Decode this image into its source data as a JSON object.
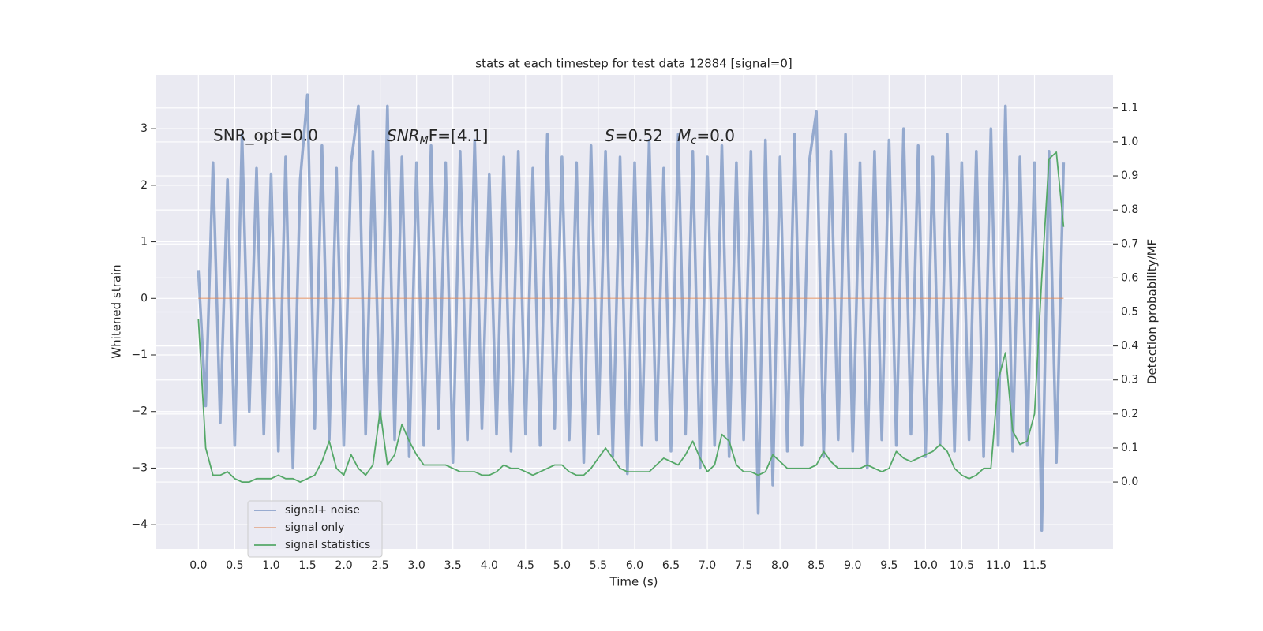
{
  "chart_data": {
    "type": "line",
    "title": "stats at each timestep for test data 12884 [signal=0]",
    "xlabel": "Time (s)",
    "ylabel": "Whitened strain",
    "y2label": "Detection probability/MF",
    "annotations": [
      "SNR_opt=0.0",
      {
        "italic": "SNR",
        "sub": "M",
        "text": "F=[4.1]"
      },
      {
        "italic": "S",
        "text": "=0.52"
      },
      {
        "italic": "M",
        "sub": "c",
        "text": "=0.0"
      }
    ],
    "x": [
      0.0,
      0.1,
      0.2,
      0.3,
      0.4,
      0.5,
      0.6,
      0.7,
      0.8,
      0.9,
      1.0,
      1.1,
      1.2,
      1.3,
      1.4,
      1.5,
      1.6,
      1.7,
      1.8,
      1.9,
      2.0,
      2.1,
      2.2,
      2.3,
      2.4,
      2.5,
      2.6,
      2.7,
      2.8,
      2.9,
      3.0,
      3.1,
      3.2,
      3.3,
      3.4,
      3.5,
      3.6,
      3.7,
      3.8,
      3.9,
      4.0,
      4.1,
      4.2,
      4.3,
      4.4,
      4.5,
      4.6,
      4.7,
      4.8,
      4.9,
      5.0,
      5.1,
      5.2,
      5.3,
      5.4,
      5.5,
      5.6,
      5.7,
      5.8,
      5.9,
      6.0,
      6.1,
      6.2,
      6.3,
      6.4,
      6.5,
      6.6,
      6.7,
      6.8,
      6.9,
      7.0,
      7.1,
      7.2,
      7.3,
      7.4,
      7.5,
      7.6,
      7.7,
      7.8,
      7.9,
      8.0,
      8.1,
      8.2,
      8.3,
      8.4,
      8.5,
      8.6,
      8.7,
      8.8,
      8.9,
      9.0,
      9.1,
      9.2,
      9.3,
      9.4,
      9.5,
      9.6,
      9.7,
      9.8,
      9.9,
      10.0,
      10.1,
      10.2,
      10.3,
      10.4,
      10.5,
      10.6,
      10.7,
      10.8,
      10.9,
      11.0,
      11.1,
      11.2,
      11.3,
      11.4,
      11.5,
      11.6,
      11.7,
      11.8,
      11.9
    ],
    "series": [
      {
        "name": "signal+ noise",
        "color": "#4c72b0",
        "values": [
          0.5,
          -1.9,
          2.4,
          -2.2,
          2.1,
          -2.6,
          2.9,
          -2.0,
          2.3,
          -2.4,
          2.2,
          -2.7,
          2.5,
          -3.0,
          2.1,
          3.6,
          -2.3,
          2.7,
          -2.5,
          2.3,
          -2.6,
          2.4,
          3.4,
          -2.4,
          2.6,
          -2.2,
          3.4,
          -2.5,
          2.5,
          -2.8,
          2.4,
          -2.6,
          2.7,
          -2.3,
          2.4,
          -2.9,
          2.6,
          -2.5,
          2.8,
          -2.3,
          2.2,
          -2.4,
          2.5,
          -2.7,
          2.6,
          -2.4,
          2.3,
          -2.6,
          2.9,
          -2.3,
          2.5,
          -2.5,
          2.4,
          -2.9,
          2.7,
          -2.4,
          2.6,
          -2.8,
          2.5,
          -3.1,
          2.4,
          -2.6,
          2.8,
          -2.5,
          2.3,
          -2.7,
          2.9,
          -2.4,
          2.6,
          -3.0,
          2.5,
          -2.6,
          2.7,
          -2.8,
          2.4,
          -2.5,
          2.6,
          -3.8,
          2.8,
          -3.3,
          2.5,
          -2.7,
          2.9,
          -2.6,
          2.4,
          3.3,
          -2.8,
          2.6,
          -2.5,
          2.9,
          -2.7,
          2.4,
          -3.0,
          2.6,
          -2.5,
          2.8,
          -2.6,
          3.0,
          -2.4,
          2.7,
          -2.8,
          2.5,
          -2.6,
          2.9,
          -2.7,
          2.4,
          -2.5,
          2.6,
          -2.8,
          3.0,
          -2.6,
          3.4,
          -2.7,
          2.5,
          -2.6,
          2.4,
          -4.1,
          2.6,
          -2.9,
          2.4
        ]
      },
      {
        "name": "signal only",
        "color": "#dd8452",
        "values": [
          0,
          0,
          0,
          0,
          0,
          0,
          0,
          0,
          0,
          0,
          0,
          0,
          0,
          0,
          0,
          0,
          0,
          0,
          0,
          0,
          0,
          0,
          0,
          0,
          0,
          0,
          0,
          0,
          0,
          0,
          0,
          0,
          0,
          0,
          0,
          0,
          0,
          0,
          0,
          0,
          0,
          0,
          0,
          0,
          0,
          0,
          0,
          0,
          0,
          0,
          0,
          0,
          0,
          0,
          0,
          0,
          0,
          0,
          0,
          0,
          0,
          0,
          0,
          0,
          0,
          0,
          0,
          0,
          0,
          0,
          0,
          0,
          0,
          0,
          0,
          0,
          0,
          0,
          0,
          0,
          0,
          0,
          0,
          0,
          0,
          0,
          0,
          0,
          0,
          0,
          0,
          0,
          0,
          0,
          0,
          0,
          0,
          0,
          0,
          0,
          0,
          0,
          0,
          0,
          0,
          0,
          0,
          0,
          0,
          0,
          0,
          0,
          0,
          0,
          0,
          0,
          0,
          0,
          0,
          0
        ]
      },
      {
        "name": "signal statistics",
        "color": "#55a868",
        "axis": "y2",
        "values": [
          0.48,
          0.1,
          0.02,
          0.02,
          0.03,
          0.01,
          0.0,
          0.0,
          0.01,
          0.01,
          0.01,
          0.02,
          0.01,
          0.01,
          0.0,
          0.01,
          0.02,
          0.06,
          0.12,
          0.04,
          0.02,
          0.08,
          0.04,
          0.02,
          0.05,
          0.21,
          0.05,
          0.08,
          0.17,
          0.12,
          0.08,
          0.05,
          0.05,
          0.05,
          0.05,
          0.04,
          0.03,
          0.03,
          0.03,
          0.02,
          0.02,
          0.03,
          0.05,
          0.04,
          0.04,
          0.03,
          0.02,
          0.03,
          0.04,
          0.05,
          0.05,
          0.03,
          0.02,
          0.02,
          0.04,
          0.07,
          0.1,
          0.07,
          0.04,
          0.03,
          0.03,
          0.03,
          0.03,
          0.05,
          0.07,
          0.06,
          0.05,
          0.08,
          0.12,
          0.07,
          0.03,
          0.05,
          0.14,
          0.12,
          0.05,
          0.03,
          0.03,
          0.02,
          0.03,
          0.08,
          0.06,
          0.04,
          0.04,
          0.04,
          0.04,
          0.05,
          0.09,
          0.06,
          0.04,
          0.04,
          0.04,
          0.04,
          0.05,
          0.04,
          0.03,
          0.04,
          0.09,
          0.07,
          0.06,
          0.07,
          0.08,
          0.09,
          0.11,
          0.09,
          0.04,
          0.02,
          0.01,
          0.02,
          0.04,
          0.04,
          0.3,
          0.38,
          0.15,
          0.11,
          0.12,
          0.2,
          0.6,
          0.95,
          0.97,
          0.75
        ]
      }
    ],
    "xlim": [
      -0.59,
      12.58
    ],
    "xticks": [
      {
        "value": 0,
        "label": "0.0"
      },
      {
        "value": 0.5,
        "label": "0.5"
      },
      {
        "value": 1,
        "label": "1.0"
      },
      {
        "value": 1.5,
        "label": "1.5"
      },
      {
        "value": 2,
        "label": "2.0"
      },
      {
        "value": 2.5,
        "label": "2.5"
      },
      {
        "value": 3,
        "label": "3.0"
      },
      {
        "value": 3.5,
        "label": "3.5"
      },
      {
        "value": 4,
        "label": "4.0"
      },
      {
        "value": 4.5,
        "label": "4.5"
      },
      {
        "value": 5,
        "label": "5.0"
      },
      {
        "value": 5.5,
        "label": "5.5"
      },
      {
        "value": 6,
        "label": "6.0"
      },
      {
        "value": 6.5,
        "label": "6.5"
      },
      {
        "value": 7,
        "label": "7.0"
      },
      {
        "value": 7.5,
        "label": "7.5"
      },
      {
        "value": 8,
        "label": "8.0"
      },
      {
        "value": 8.5,
        "label": "8.5"
      },
      {
        "value": 9,
        "label": "9.0"
      },
      {
        "value": 9.5,
        "label": "9.5"
      },
      {
        "value": 10,
        "label": "10.0"
      },
      {
        "value": 10.5,
        "label": "10.5"
      },
      {
        "value": 11,
        "label": "11.0"
      },
      {
        "value": 11.5,
        "label": "11.5"
      }
    ],
    "ylim": [
      -4.43,
      3.95
    ],
    "yticks": [
      {
        "value": -4,
        "label": "−4"
      },
      {
        "value": -3,
        "label": "−3"
      },
      {
        "value": -2,
        "label": "−2"
      },
      {
        "value": -1,
        "label": "−1"
      },
      0,
      1,
      2,
      3
    ],
    "y2lim": [
      -0.197,
      1.197
    ],
    "y2ticks": [
      {
        "value": 0,
        "label": "0.0"
      },
      {
        "value": 0.1,
        "label": "0.1"
      },
      {
        "value": 0.2,
        "label": "0.2"
      },
      {
        "value": 0.3,
        "label": "0.3"
      },
      {
        "value": 0.4,
        "label": "0.4"
      },
      {
        "value": 0.5,
        "label": "0.5"
      },
      {
        "value": 0.6,
        "label": "0.6"
      },
      {
        "value": 0.7,
        "label": "0.7"
      },
      {
        "value": 0.8,
        "label": "0.8"
      },
      {
        "value": 0.9,
        "label": "0.9"
      },
      {
        "value": 1,
        "label": "1.0"
      },
      {
        "value": 1.1,
        "label": "1.1"
      }
    ],
    "grid": true,
    "legend": "lower left"
  }
}
